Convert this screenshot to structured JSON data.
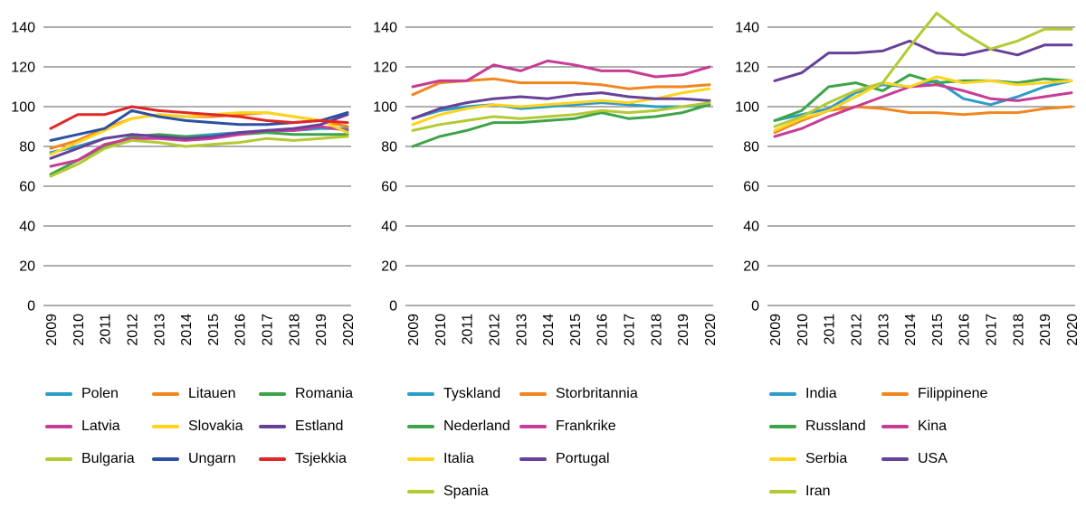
{
  "style": {
    "background": "#ffffff",
    "grid_color": "#7d7d7d",
    "text_color": "#000000"
  },
  "chart_data": [
    {
      "type": "line",
      "x": [
        "2009",
        "2010",
        "2011",
        "2012",
        "2013",
        "2014",
        "2015",
        "2016",
        "2017",
        "2018",
        "2019",
        "2020"
      ],
      "ylim": [
        0,
        140
      ],
      "y_ticks": [
        0,
        20,
        40,
        60,
        80,
        100,
        120,
        140
      ],
      "grid": true,
      "legend_position": "bottom",
      "legend_columns": 3,
      "legend_col_width": 118,
      "series": [
        {
          "name": "Polen",
          "color": "#2d9dc8",
          "values": [
            77,
            80,
            84,
            86,
            85,
            85,
            86,
            87,
            88,
            88,
            89,
            89
          ]
        },
        {
          "name": "Litauen",
          "color": "#f0861f",
          "values": [
            79,
            83,
            89,
            94,
            96,
            95,
            95,
            96,
            97,
            95,
            93,
            90
          ]
        },
        {
          "name": "Romania",
          "color": "#3ea44a",
          "values": [
            66,
            73,
            80,
            85,
            86,
            85,
            85,
            86,
            87,
            86,
            86,
            86
          ]
        },
        {
          "name": "Latvia",
          "color": "#c73c94",
          "values": [
            70,
            73,
            81,
            84,
            84,
            83,
            84,
            86,
            88,
            88,
            90,
            88
          ]
        },
        {
          "name": "Slovakia",
          "color": "#ffd41f",
          "values": [
            76,
            82,
            88,
            94,
            96,
            95,
            96,
            97,
            97,
            95,
            93,
            87
          ]
        },
        {
          "name": "Estland",
          "color": "#66419a",
          "values": [
            74,
            79,
            84,
            86,
            85,
            84,
            85,
            87,
            88,
            89,
            91,
            96
          ]
        },
        {
          "name": "Bulgaria",
          "color": "#b4c932",
          "values": [
            65,
            71,
            79,
            83,
            82,
            80,
            81,
            82,
            84,
            83,
            84,
            85
          ]
        },
        {
          "name": "Ungarn",
          "color": "#2c51a0",
          "values": [
            83,
            86,
            89,
            98,
            95,
            93,
            92,
            91,
            91,
            92,
            93,
            97
          ]
        },
        {
          "name": "Tsjekkia",
          "color": "#e12726",
          "values": [
            89,
            96,
            96,
            100,
            98,
            97,
            96,
            95,
            93,
            92,
            93,
            92
          ]
        }
      ]
    },
    {
      "type": "line",
      "x": [
        "2009",
        "2010",
        "2011",
        "2012",
        "2013",
        "2014",
        "2015",
        "2016",
        "2017",
        "2018",
        "2019",
        "2020"
      ],
      "ylim": [
        0,
        140
      ],
      "y_ticks": [
        0,
        20,
        40,
        60,
        80,
        100,
        120,
        140
      ],
      "grid": true,
      "legend_position": "bottom",
      "legend_columns": 2,
      "legend_col_width": 124,
      "series": [
        {
          "name": "Tyskland",
          "color": "#2d9dc8",
          "values": [
            94,
            98,
            100,
            101,
            99,
            100,
            101,
            102,
            101,
            100,
            100,
            101
          ]
        },
        {
          "name": "Storbritannia",
          "color": "#f0861f",
          "values": [
            106,
            112,
            113,
            114,
            112,
            112,
            112,
            111,
            109,
            110,
            110,
            111
          ]
        },
        {
          "name": "Nederland",
          "color": "#3ea44a",
          "values": [
            80,
            85,
            88,
            92,
            92,
            93,
            94,
            97,
            94,
            95,
            97,
            101
          ]
        },
        {
          "name": "Frankrike",
          "color": "#c73c94",
          "values": [
            110,
            113,
            113,
            121,
            118,
            123,
            121,
            118,
            118,
            115,
            116,
            120
          ]
        },
        {
          "name": "Italia",
          "color": "#ffd41f",
          "values": [
            91,
            96,
            99,
            101,
            100,
            101,
            102,
            103,
            102,
            104,
            107,
            109
          ]
        },
        {
          "name": "Portugal",
          "color": "#66419a",
          "values": [
            94,
            99,
            102,
            104,
            105,
            104,
            106,
            107,
            105,
            104,
            104,
            103
          ]
        },
        {
          "name": "Spania",
          "color": "#b4c932",
          "values": [
            88,
            91,
            93,
            95,
            94,
            95,
            96,
            98,
            97,
            98,
            100,
            102
          ]
        }
      ]
    },
    {
      "type": "line",
      "x": [
        "2009",
        "2010",
        "2011",
        "2012",
        "2013",
        "2014",
        "2015",
        "2016",
        "2017",
        "2018",
        "2019",
        "2020"
      ],
      "ylim": [
        0,
        140
      ],
      "y_ticks": [
        0,
        20,
        40,
        60,
        80,
        100,
        120,
        140
      ],
      "grid": true,
      "legend_position": "bottom",
      "legend_columns": 2,
      "legend_col_width": 124,
      "series": [
        {
          "name": "India",
          "color": "#2d9dc8",
          "values": [
            93,
            96,
            99,
            107,
            111,
            110,
            113,
            104,
            101,
            105,
            110,
            113
          ]
        },
        {
          "name": "Filippinene",
          "color": "#f0861f",
          "values": [
            87,
            93,
            98,
            100,
            99,
            97,
            97,
            96,
            97,
            97,
            99,
            100
          ]
        },
        {
          "name": "Russland",
          "color": "#3ea44a",
          "values": [
            93,
            98,
            110,
            112,
            108,
            116,
            112,
            113,
            113,
            112,
            114,
            113
          ]
        },
        {
          "name": "Kina",
          "color": "#c73c94",
          "values": [
            85,
            89,
            95,
            100,
            105,
            110,
            111,
            108,
            104,
            103,
            105,
            107
          ]
        },
        {
          "name": "Serbia",
          "color": "#ffd41f",
          "values": [
            88,
            94,
            98,
            105,
            112,
            110,
            115,
            112,
            113,
            111,
            112,
            113
          ]
        },
        {
          "name": "USA",
          "color": "#66419a",
          "values": [
            113,
            117,
            127,
            127,
            128,
            133,
            127,
            126,
            129,
            126,
            131,
            131
          ]
        },
        {
          "name": "Iran",
          "color": "#b4c932",
          "values": [
            90,
            95,
            102,
            108,
            112,
            130,
            147,
            137,
            129,
            133,
            139,
            139
          ]
        }
      ]
    }
  ]
}
